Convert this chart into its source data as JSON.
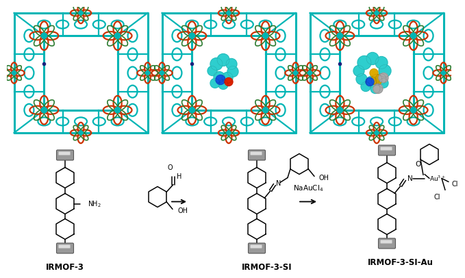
{
  "background_color": "#ffffff",
  "labels": [
    "IRMOF-3",
    "IRMOF-3-SI",
    "IRMOF-3-SI-Au"
  ],
  "label_fontsize": 9,
  "mof_colors": {
    "teal": "#00B5B5",
    "red": "#CC3300",
    "green": "#2E7D32",
    "blue": "#1A237E",
    "dark_teal": "#007070"
  }
}
